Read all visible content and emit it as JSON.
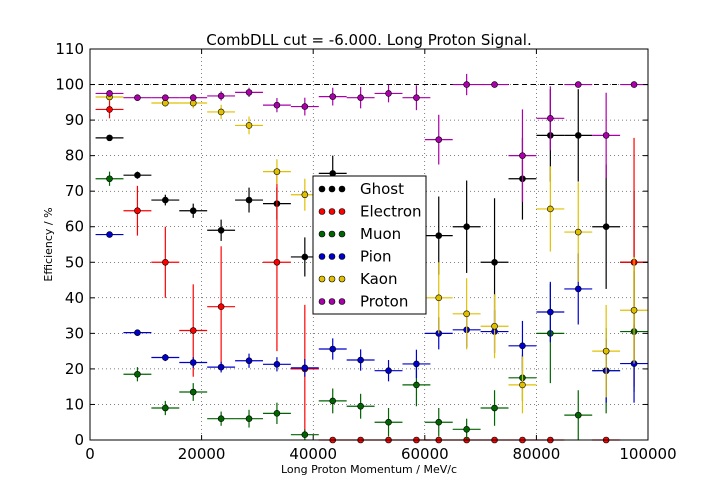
{
  "chart_data": {
    "type": "scatter",
    "title": "CombDLL cut = -6.000. Long Proton Signal.",
    "xlabel": "Long Proton Momentum / MeV/c",
    "ylabel": "Efficiency / %",
    "xlim": [
      0,
      100000
    ],
    "ylim": [
      0,
      110
    ],
    "xticks": [
      "0",
      "20000",
      "40000",
      "60000",
      "80000",
      "100000"
    ],
    "yticks": [
      "0",
      "10",
      "20",
      "30",
      "40",
      "50",
      "60",
      "70",
      "80",
      "90",
      "100",
      "110"
    ],
    "grid": true,
    "reference_line_y": 100,
    "legend_position": "center",
    "bin_half_width": 2500,
    "series": [
      {
        "name": "Ghost",
        "color": "#000000",
        "points": [
          {
            "x": 3500,
            "y": 85,
            "err": 0.5
          },
          {
            "x": 8500,
            "y": 74.5,
            "err": 1
          },
          {
            "x": 13500,
            "y": 67.5,
            "err": 1.5
          },
          {
            "x": 18500,
            "y": 64.5,
            "err": 2
          },
          {
            "x": 23500,
            "y": 59,
            "err": 3
          },
          {
            "x": 28500,
            "y": 67.5,
            "err": 3.5
          },
          {
            "x": 33500,
            "y": 66.5,
            "err": 4.5
          },
          {
            "x": 38500,
            "y": 51.5,
            "err": 5.5
          },
          {
            "x": 43500,
            "y": 75,
            "err": 5
          },
          {
            "x": 62500,
            "y": 57.5,
            "err": 11
          },
          {
            "x": 67500,
            "y": 60,
            "err": 13
          },
          {
            "x": 72500,
            "y": 50,
            "err": 18
          },
          {
            "x": 77500,
            "y": 73.5,
            "err": 11.5
          },
          {
            "x": 82500,
            "y": 85.7,
            "err": 13
          },
          {
            "x": 87500,
            "y": 85.7,
            "err": 13
          },
          {
            "x": 92500,
            "y": 60,
            "err": 17.5
          },
          {
            "x": 97500,
            "y": 50,
            "err": 20
          }
        ]
      },
      {
        "name": "Electron",
        "color": "#ff0000",
        "points": [
          {
            "x": 3500,
            "y": 93,
            "err": 2.5
          },
          {
            "x": 8500,
            "y": 64.5,
            "err": 7
          },
          {
            "x": 13500,
            "y": 50,
            "err": 10
          },
          {
            "x": 18500,
            "y": 30.8,
            "err": 13
          },
          {
            "x": 23500,
            "y": 37.5,
            "err": 17
          },
          {
            "x": 33500,
            "y": 50,
            "err": 25
          },
          {
            "x": 38500,
            "y": 20,
            "err": 18
          },
          {
            "x": 43500,
            "y": 0,
            "err": 0
          },
          {
            "x": 48500,
            "y": 0,
            "err": 0
          },
          {
            "x": 53500,
            "y": 0,
            "err": 0
          },
          {
            "x": 58500,
            "y": 0,
            "err": 0
          },
          {
            "x": 62500,
            "y": 0,
            "err": 0
          },
          {
            "x": 67500,
            "y": 0,
            "err": 0
          },
          {
            "x": 72500,
            "y": 0,
            "err": 0
          },
          {
            "x": 77500,
            "y": 0,
            "err": 0
          },
          {
            "x": 82500,
            "y": 0,
            "err": 0
          },
          {
            "x": 92500,
            "y": 0,
            "err": 0
          },
          {
            "x": 97500,
            "y": 50,
            "err": 35
          }
        ]
      },
      {
        "name": "Muon",
        "color": "#006400",
        "points": [
          {
            "x": 3500,
            "y": 73.5,
            "err": 2
          },
          {
            "x": 8500,
            "y": 18.5,
            "err": 2
          },
          {
            "x": 13500,
            "y": 9,
            "err": 2
          },
          {
            "x": 18500,
            "y": 13.5,
            "err": 2.5
          },
          {
            "x": 23500,
            "y": 6,
            "err": 2
          },
          {
            "x": 28500,
            "y": 6,
            "err": 2.5
          },
          {
            "x": 33500,
            "y": 7.5,
            "err": 3
          },
          {
            "x": 38500,
            "y": 1.5,
            "err": 1.5
          },
          {
            "x": 43500,
            "y": 11,
            "err": 3.5
          },
          {
            "x": 48500,
            "y": 9.5,
            "err": 3.5
          },
          {
            "x": 53500,
            "y": 5,
            "err": 4
          },
          {
            "x": 58500,
            "y": 15.5,
            "err": 6
          },
          {
            "x": 62500,
            "y": 5,
            "err": 4
          },
          {
            "x": 67500,
            "y": 3,
            "err": 3
          },
          {
            "x": 72500,
            "y": 9,
            "err": 5
          },
          {
            "x": 77500,
            "y": 17.5,
            "err": 6.5
          },
          {
            "x": 82500,
            "y": 30,
            "err": 14
          },
          {
            "x": 87500,
            "y": 7,
            "err": 7
          },
          {
            "x": 92500,
            "y": 19.5,
            "err": 12
          },
          {
            "x": 97500,
            "y": 30.5,
            "err": 17
          }
        ]
      },
      {
        "name": "Pion",
        "color": "#0000cc",
        "points": [
          {
            "x": 3500,
            "y": 57.8,
            "err": 0.5
          },
          {
            "x": 8500,
            "y": 30.2,
            "err": 0.8
          },
          {
            "x": 13500,
            "y": 23.2,
            "err": 1
          },
          {
            "x": 18500,
            "y": 21.8,
            "err": 1.5
          },
          {
            "x": 23500,
            "y": 20.5,
            "err": 1.5
          },
          {
            "x": 28500,
            "y": 22.3,
            "err": 2
          },
          {
            "x": 33500,
            "y": 21.3,
            "err": 2
          },
          {
            "x": 38500,
            "y": 20.3,
            "err": 2.5
          },
          {
            "x": 43500,
            "y": 25.6,
            "err": 3
          },
          {
            "x": 48500,
            "y": 22.5,
            "err": 3
          },
          {
            "x": 53500,
            "y": 19.5,
            "err": 3
          },
          {
            "x": 58500,
            "y": 21.4,
            "err": 4
          },
          {
            "x": 62500,
            "y": 30,
            "err": 4.5
          },
          {
            "x": 67500,
            "y": 31,
            "err": 5
          },
          {
            "x": 72500,
            "y": 30.5,
            "err": 6
          },
          {
            "x": 77500,
            "y": 26.5,
            "err": 7
          },
          {
            "x": 82500,
            "y": 36,
            "err": 8.5
          },
          {
            "x": 87500,
            "y": 42.5,
            "err": 10
          },
          {
            "x": 92500,
            "y": 19.5,
            "err": 9
          },
          {
            "x": 97500,
            "y": 21.5,
            "err": 11
          }
        ]
      },
      {
        "name": "Kaon",
        "color": "#e0c000",
        "points": [
          {
            "x": 3500,
            "y": 96.5,
            "err": 1
          },
          {
            "x": 13500,
            "y": 94.8,
            "err": 1
          },
          {
            "x": 18500,
            "y": 94.8,
            "err": 1.5
          },
          {
            "x": 23500,
            "y": 92.3,
            "err": 2
          },
          {
            "x": 28500,
            "y": 88.5,
            "err": 2.5
          },
          {
            "x": 33500,
            "y": 75.5,
            "err": 3.5
          },
          {
            "x": 38500,
            "y": 69,
            "err": 4.5
          },
          {
            "x": 62500,
            "y": 40,
            "err": 10
          },
          {
            "x": 67500,
            "y": 35.5,
            "err": 10
          },
          {
            "x": 72500,
            "y": 32,
            "err": 9
          },
          {
            "x": 77500,
            "y": 15.5,
            "err": 8
          },
          {
            "x": 82500,
            "y": 65,
            "err": 12
          },
          {
            "x": 87500,
            "y": 58.5,
            "err": 14
          },
          {
            "x": 92500,
            "y": 25,
            "err": 13
          },
          {
            "x": 97500,
            "y": 36.5,
            "err": 15
          }
        ]
      },
      {
        "name": "Proton",
        "color": "#aa00aa",
        "points": [
          {
            "x": 3500,
            "y": 97.5,
            "err": 0.3
          },
          {
            "x": 8500,
            "y": 96.3,
            "err": 0.5
          },
          {
            "x": 13500,
            "y": 96.3,
            "err": 0.8
          },
          {
            "x": 18500,
            "y": 96.3,
            "err": 1
          },
          {
            "x": 23500,
            "y": 96.8,
            "err": 1.3
          },
          {
            "x": 28500,
            "y": 97.8,
            "err": 1.3
          },
          {
            "x": 33500,
            "y": 94.2,
            "err": 2
          },
          {
            "x": 38500,
            "y": 93.8,
            "err": 2.5
          },
          {
            "x": 43500,
            "y": 96.6,
            "err": 2.5
          },
          {
            "x": 48500,
            "y": 96.3,
            "err": 3
          },
          {
            "x": 53500,
            "y": 97.5,
            "err": 2.5
          },
          {
            "x": 58500,
            "y": 96.3,
            "err": 3.5
          },
          {
            "x": 62500,
            "y": 84.5,
            "err": 7
          },
          {
            "x": 67500,
            "y": 100,
            "err": 3
          },
          {
            "x": 72500,
            "y": 100,
            "err": 0
          },
          {
            "x": 77500,
            "y": 80,
            "err": 13
          },
          {
            "x": 82500,
            "y": 90.5,
            "err": 9
          },
          {
            "x": 87500,
            "y": 100,
            "err": 0
          },
          {
            "x": 92500,
            "y": 85.7,
            "err": 12
          },
          {
            "x": 97500,
            "y": 100,
            "err": 0
          }
        ]
      }
    ]
  }
}
